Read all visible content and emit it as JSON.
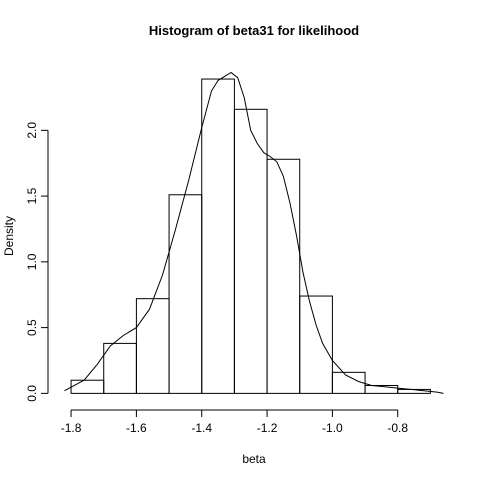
{
  "chart_data": {
    "type": "bar",
    "title": "Histogram of beta31 for likelihood",
    "xlabel": "beta",
    "ylabel": "Density",
    "xlim": [
      -1.84,
      -0.64
    ],
    "ylim": [
      -0.02,
      2.55
    ],
    "x_ticks": [
      -1.8,
      -1.6,
      -1.4,
      -1.2,
      -1.0,
      -0.8
    ],
    "x_tick_labels": [
      "-1.8",
      "-1.6",
      "-1.4",
      "-1.2",
      "-1.0",
      "-0.8"
    ],
    "y_ticks": [
      0.0,
      0.5,
      1.0,
      1.5,
      2.0
    ],
    "y_tick_labels": [
      "0.0",
      "0.5",
      "1.0",
      "1.5",
      "2.0"
    ],
    "bins": [
      {
        "x0": -1.8,
        "x1": -1.7,
        "density": 0.1
      },
      {
        "x0": -1.7,
        "x1": -1.6,
        "density": 0.38
      },
      {
        "x0": -1.6,
        "x1": -1.5,
        "density": 0.72
      },
      {
        "x0": -1.5,
        "x1": -1.4,
        "density": 1.51
      },
      {
        "x0": -1.4,
        "x1": -1.3,
        "density": 2.39
      },
      {
        "x0": -1.3,
        "x1": -1.2,
        "density": 2.16
      },
      {
        "x0": -1.2,
        "x1": -1.1,
        "density": 1.78
      },
      {
        "x0": -1.1,
        "x1": -1.0,
        "density": 0.74
      },
      {
        "x0": -1.0,
        "x1": -0.9,
        "density": 0.16
      },
      {
        "x0": -0.9,
        "x1": -0.8,
        "density": 0.06
      },
      {
        "x0": -0.8,
        "x1": -0.7,
        "density": 0.03
      }
    ],
    "density_curve": {
      "x": [
        -1.82,
        -1.76,
        -1.72,
        -1.68,
        -1.64,
        -1.6,
        -1.56,
        -1.52,
        -1.48,
        -1.44,
        -1.4,
        -1.37,
        -1.35,
        -1.33,
        -1.31,
        -1.29,
        -1.27,
        -1.25,
        -1.23,
        -1.21,
        -1.19,
        -1.17,
        -1.15,
        -1.13,
        -1.11,
        -1.09,
        -1.07,
        -1.05,
        -1.03,
        -1.0,
        -0.96,
        -0.92,
        -0.88,
        -0.84,
        -0.8,
        -0.76,
        -0.72,
        -0.68,
        -0.66
      ],
      "y": [
        0.02,
        0.1,
        0.22,
        0.36,
        0.44,
        0.5,
        0.64,
        0.9,
        1.25,
        1.62,
        2.02,
        2.3,
        2.38,
        2.41,
        2.44,
        2.4,
        2.25,
        2.0,
        1.9,
        1.83,
        1.8,
        1.76,
        1.65,
        1.45,
        1.2,
        0.92,
        0.7,
        0.52,
        0.38,
        0.25,
        0.14,
        0.09,
        0.06,
        0.05,
        0.04,
        0.03,
        0.02,
        0.01,
        0.0
      ]
    }
  }
}
